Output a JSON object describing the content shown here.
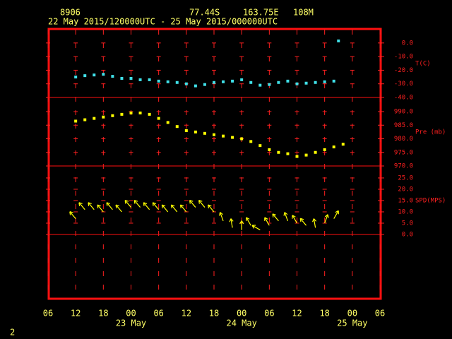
{
  "header": {
    "station": "8906",
    "lat": "77.44S",
    "lon": "163.75E",
    "elev": "108M",
    "period": "22 May 2015/120000UTC - 25 May 2015/000000UTC",
    "page": "2"
  },
  "chart_data": [
    {
      "type": "scatter",
      "y_label": "T(C)",
      "xlim": [
        "2015-05-22T06:00Z",
        "2015-05-25T06:00Z"
      ],
      "ylim": [
        -40,
        10.8
      ],
      "yticks": [
        {
          "value": 0,
          "label": "0.0"
        },
        {
          "value": -10,
          "label": "-10.0"
        },
        {
          "value": -20,
          "label": "-20.0"
        },
        {
          "value": -30,
          "label": "-30.0"
        },
        {
          "value": -40,
          "label": "-40.0"
        }
      ],
      "x": [
        "2015-05-22T12:00Z",
        "2015-05-22T14:00Z",
        "2015-05-22T16:00Z",
        "2015-05-22T18:00Z",
        "2015-05-22T20:00Z",
        "2015-05-22T22:00Z",
        "2015-05-23T00:00Z",
        "2015-05-23T02:00Z",
        "2015-05-23T04:00Z",
        "2015-05-23T06:00Z",
        "2015-05-23T08:00Z",
        "2015-05-23T10:00Z",
        "2015-05-23T12:00Z",
        "2015-05-23T14:00Z",
        "2015-05-23T16:00Z",
        "2015-05-23T18:00Z",
        "2015-05-23T20:00Z",
        "2015-05-23T22:00Z",
        "2015-05-24T00:00Z",
        "2015-05-24T02:00Z",
        "2015-05-24T04:00Z",
        "2015-05-24T06:00Z",
        "2015-05-24T08:00Z",
        "2015-05-24T10:00Z",
        "2015-05-24T12:00Z",
        "2015-05-24T14:00Z",
        "2015-05-24T16:00Z",
        "2015-05-24T18:00Z",
        "2015-05-24T20:00Z",
        "2015-05-24T21:00Z"
      ],
      "series": [
        {
          "color": "#40e0e8",
          "values": [
            -25,
            -24,
            -23.5,
            -23,
            -24.5,
            -26,
            -26,
            -27,
            -27,
            -28,
            -28.5,
            -29,
            -30,
            -31.5,
            -30.5,
            -29,
            -28.5,
            -28,
            -27,
            -29,
            -31,
            -30.5,
            -29,
            -28,
            -30,
            -29.5,
            -29,
            -28.5,
            -28,
            1.5
          ]
        }
      ]
    },
    {
      "type": "scatter",
      "y_label": "Pre (mb)",
      "xlim": [
        "2015-05-22T06:00Z",
        "2015-05-25T06:00Z"
      ],
      "ylim": [
        970,
        995.2
      ],
      "yticks": [
        {
          "value": 990,
          "label": "990.0"
        },
        {
          "value": 985,
          "label": "985.0"
        },
        {
          "value": 980,
          "label": "980.0"
        },
        {
          "value": 975,
          "label": "975.0"
        },
        {
          "value": 970,
          "label": "970.0"
        }
      ],
      "x": [
        "2015-05-22T12:00Z",
        "2015-05-22T14:00Z",
        "2015-05-22T16:00Z",
        "2015-05-22T18:00Z",
        "2015-05-22T20:00Z",
        "2015-05-22T22:00Z",
        "2015-05-23T00:00Z",
        "2015-05-23T02:00Z",
        "2015-05-23T04:00Z",
        "2015-05-23T06:00Z",
        "2015-05-23T08:00Z",
        "2015-05-23T10:00Z",
        "2015-05-23T12:00Z",
        "2015-05-23T14:00Z",
        "2015-05-23T16:00Z",
        "2015-05-23T18:00Z",
        "2015-05-23T20:00Z",
        "2015-05-23T22:00Z",
        "2015-05-24T00:00Z",
        "2015-05-24T02:00Z",
        "2015-05-24T04:00Z",
        "2015-05-24T06:00Z",
        "2015-05-24T08:00Z",
        "2015-05-24T10:00Z",
        "2015-05-24T12:00Z",
        "2015-05-24T14:00Z",
        "2015-05-24T16:00Z",
        "2015-05-24T18:00Z",
        "2015-05-24T20:00Z",
        "2015-05-24T22:00Z"
      ],
      "series": [
        {
          "color": "#ffff00",
          "values": [
            986.5,
            987,
            987.5,
            988,
            988.5,
            989,
            989.5,
            989.5,
            989,
            987.5,
            986,
            984.5,
            983,
            982.5,
            982,
            981.5,
            981,
            980.5,
            980,
            979,
            977.5,
            976,
            975,
            974.5,
            973.5,
            974,
            975,
            976,
            977,
            978
          ]
        }
      ]
    },
    {
      "type": "vector",
      "y_label": "SPD(MPS)",
      "xlim": [
        "2015-05-22T06:00Z",
        "2015-05-25T06:00Z"
      ],
      "ylim": [
        -28.75,
        30.3
      ],
      "yticks": [
        {
          "value": 25,
          "label": "25.0"
        },
        {
          "value": 20,
          "label": "20.0"
        },
        {
          "value": 15,
          "label": "15.0"
        },
        {
          "value": 10,
          "label": "10.0"
        },
        {
          "value": 5,
          "label": "5.0"
        },
        {
          "value": 0,
          "label": "0.0"
        }
      ],
      "hlines": [
        0
      ],
      "xticks": [
        {
          "value": "2015-05-22T06:00Z",
          "label": "06"
        },
        {
          "value": "2015-05-22T12:00Z",
          "label": "12"
        },
        {
          "value": "2015-05-22T18:00Z",
          "label": "18"
        },
        {
          "value": "2015-05-23T00:00Z",
          "label": "00"
        },
        {
          "value": "2015-05-23T06:00Z",
          "label": "06"
        },
        {
          "value": "2015-05-23T12:00Z",
          "label": "12"
        },
        {
          "value": "2015-05-23T18:00Z",
          "label": "18"
        },
        {
          "value": "2015-05-24T00:00Z",
          "label": "00"
        },
        {
          "value": "2015-05-24T06:00Z",
          "label": "06"
        },
        {
          "value": "2015-05-24T12:00Z",
          "label": "12"
        },
        {
          "value": "2015-05-24T18:00Z",
          "label": "18"
        },
        {
          "value": "2015-05-25T00:00Z",
          "label": "00"
        },
        {
          "value": "2015-05-25T06:00Z",
          "label": "06"
        }
      ],
      "day_labels": [
        {
          "value": "2015-05-23T00:00Z",
          "label": "23 May"
        },
        {
          "value": "2015-05-24T00:00Z",
          "label": "24 May"
        },
        {
          "value": "2015-05-25T00:00Z",
          "label": "25 May"
        }
      ],
      "x": [
        "2015-05-22T12:00Z",
        "2015-05-22T14:00Z",
        "2015-05-22T16:00Z",
        "2015-05-22T18:00Z",
        "2015-05-22T20:00Z",
        "2015-05-22T22:00Z",
        "2015-05-23T00:00Z",
        "2015-05-23T02:00Z",
        "2015-05-23T04:00Z",
        "2015-05-23T06:00Z",
        "2015-05-23T08:00Z",
        "2015-05-23T10:00Z",
        "2015-05-23T12:00Z",
        "2015-05-23T14:00Z",
        "2015-05-23T16:00Z",
        "2015-05-23T18:00Z",
        "2015-05-23T20:00Z",
        "2015-05-23T22:00Z",
        "2015-05-24T00:00Z",
        "2015-05-24T02:00Z",
        "2015-05-24T04:00Z",
        "2015-05-24T06:00Z",
        "2015-05-24T08:00Z",
        "2015-05-24T10:00Z",
        "2015-05-24T12:00Z",
        "2015-05-24T14:00Z",
        "2015-05-24T16:00Z",
        "2015-05-24T18:00Z",
        "2015-05-24T20:00Z"
      ],
      "series": [
        {
          "color": "#ffff00",
          "values": [
            7,
            11,
            11,
            10,
            11,
            10,
            12,
            12,
            11,
            11,
            10,
            10,
            10,
            12,
            12,
            10,
            6,
            3,
            2,
            4,
            2,
            4,
            6,
            6,
            5,
            4,
            3,
            5,
            7
          ],
          "directions": [
            320,
            320,
            320,
            320,
            320,
            320,
            320,
            320,
            320,
            320,
            320,
            320,
            320,
            320,
            320,
            320,
            340,
            350,
            0,
            330,
            300,
            330,
            320,
            340,
            330,
            320,
            350,
            20,
            30
          ]
        }
      ]
    }
  ]
}
